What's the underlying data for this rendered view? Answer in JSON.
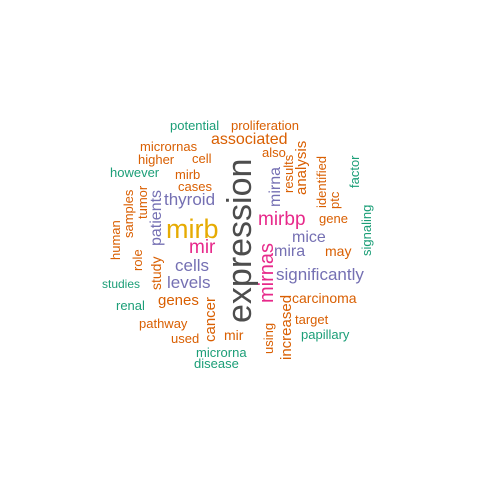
{
  "colors": {
    "grey": "#4d4d4d",
    "orange": "#d95f02",
    "teal": "#1b9e77",
    "purple": "#7570b3",
    "pink": "#e7298a",
    "gold": "#e6ab02"
  },
  "words": {
    "expression": "expression",
    "mirb": "mirb",
    "mirnas": "mirnas",
    "mirbp": "mirbp",
    "mir": "mir",
    "thyroid": "thyroid",
    "cells": "cells",
    "levels": "levels",
    "significantly": "significantly",
    "mice": "mice",
    "mira": "mira",
    "patients": "patients",
    "associated": "associated",
    "mirna": "mirna",
    "genes": "genes",
    "cancer": "cancer",
    "proliferation": "proliferation",
    "potential": "potential",
    "micrornas": "micrornas",
    "higher": "higher",
    "cell": "cell",
    "also": "also",
    "however": "however",
    "mir_b": "mirb",
    "cases": "cases",
    "tumor": "tumor",
    "samples": "samples",
    "human": "human",
    "role": "role",
    "study": "study",
    "results": "results",
    "analysis": "analysis",
    "identified": "identified",
    "ptc": "ptc",
    "factor": "factor",
    "gene": "gene",
    "signaling": "signaling",
    "may": "may",
    "studies": "studies",
    "renal": "renal",
    "carcinoma": "carcinoma",
    "pathway": "pathway",
    "target": "target",
    "used": "used",
    "mir_dash": "mir",
    "using": "using",
    "increased": "increased",
    "papillary": "papillary",
    "microrna": "microrna",
    "disease": "disease"
  }
}
